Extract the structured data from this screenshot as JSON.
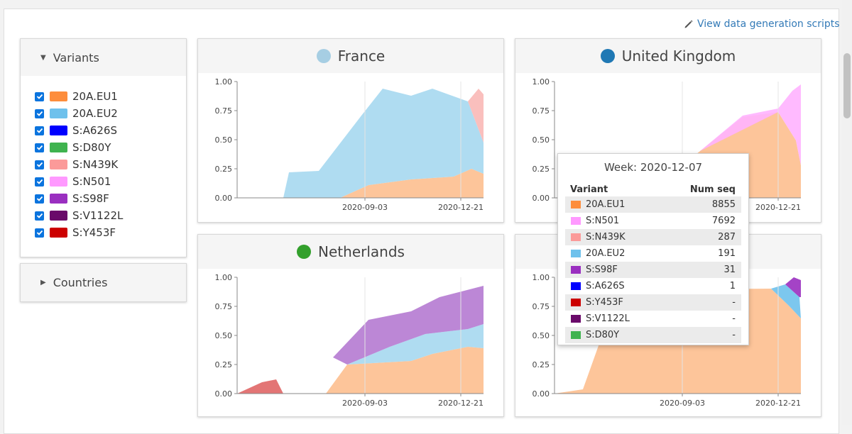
{
  "header": {
    "generation_link": "View data generation scripts"
  },
  "variants_panel": {
    "title": "Variants",
    "items": [
      {
        "label": "20A.EU1",
        "color": "#fd8d3c",
        "checked": true
      },
      {
        "label": "20A.EU2",
        "color": "#6ec1ec",
        "checked": true
      },
      {
        "label": "S:A626S",
        "color": "#0000ff",
        "checked": true
      },
      {
        "label": "S:D80Y",
        "color": "#3fb34f",
        "checked": true
      },
      {
        "label": "S:N439K",
        "color": "#fb9a99",
        "checked": true
      },
      {
        "label": "S:N501",
        "color": "#ff99ff",
        "checked": true
      },
      {
        "label": "S:S98F",
        "color": "#9a2fc0",
        "checked": true
      },
      {
        "label": "S:V1122L",
        "color": "#6a0a6a",
        "checked": true
      },
      {
        "label": "S:Y453F",
        "color": "#cc0000",
        "checked": true
      }
    ]
  },
  "countries_panel": {
    "title": "Countries"
  },
  "charts": [
    {
      "country": "France",
      "dot_color": "#a6cee3",
      "yticks": [
        "1.00",
        "0.75",
        "0.50",
        "0.25",
        "0.00"
      ],
      "xticks": [
        "2020-09-03",
        "2020-12-21"
      ]
    },
    {
      "country": "United Kingdom",
      "dot_color": "#1f78b4",
      "yticks": [
        "1.00",
        "0.75",
        "0.50",
        "0.25",
        "0.00"
      ],
      "xticks": [
        "2020-09-03",
        "2020-12-21"
      ]
    },
    {
      "country": "Netherlands",
      "dot_color": "#33a02c",
      "yticks": [
        "1.00",
        "0.75",
        "0.50",
        "0.25",
        "0.00"
      ],
      "xticks": [
        "2020-09-03",
        "2020-12-21"
      ]
    },
    {
      "country": "",
      "dot_color": "",
      "yticks": [
        "1.00",
        "0.75",
        "0.50",
        "0.25",
        "0.00"
      ],
      "xticks": [
        "2020-09-03",
        "2020-12-21"
      ]
    }
  ],
  "tooltip": {
    "week": "Week: 2020-12-07",
    "col_variant": "Variant",
    "col_num": "Num seq",
    "rows": [
      {
        "variant": "20A.EU1",
        "num": "8855",
        "color": "#fd8d3c"
      },
      {
        "variant": "S:N501",
        "num": "7692",
        "color": "#ff99ff"
      },
      {
        "variant": "S:N439K",
        "num": "287",
        "color": "#fb9a99"
      },
      {
        "variant": "20A.EU2",
        "num": "191",
        "color": "#6ec1ec"
      },
      {
        "variant": "S:S98F",
        "num": "31",
        "color": "#9a2fc0"
      },
      {
        "variant": "S:A626S",
        "num": "1",
        "color": "#0000ff"
      },
      {
        "variant": "S:Y453F",
        "num": "-",
        "color": "#cc0000"
      },
      {
        "variant": "S:V1122L",
        "num": "-",
        "color": "#6a0a6a"
      },
      {
        "variant": "S:D80Y",
        "num": "-",
        "color": "#3fb34f"
      }
    ]
  }
}
